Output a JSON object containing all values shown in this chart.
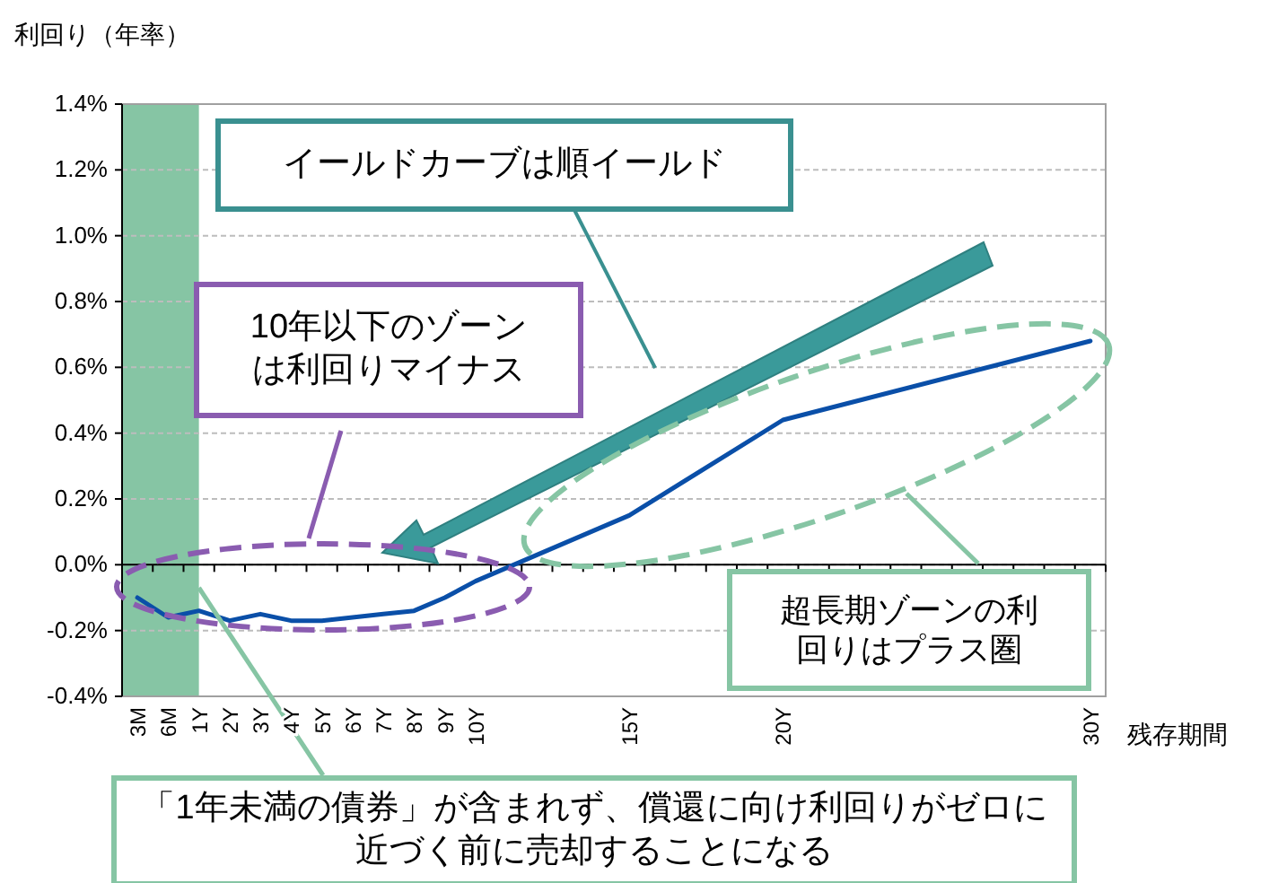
{
  "chart_data": {
    "type": "line",
    "ylabel": "利回り（年率）",
    "xlabel": "残存期間",
    "categories": [
      "3M",
      "6M",
      "1Y",
      "2Y",
      "3Y",
      "4Y",
      "5Y",
      "6Y",
      "7Y",
      "8Y",
      "9Y",
      "10Y",
      null,
      null,
      null,
      null,
      "15Y",
      null,
      null,
      null,
      null,
      "20Y",
      null,
      null,
      null,
      null,
      null,
      null,
      null,
      null,
      null,
      "30Y"
    ],
    "values": [
      -0.1,
      -0.16,
      -0.14,
      -0.17,
      -0.15,
      -0.17,
      -0.17,
      -0.16,
      -0.15,
      -0.14,
      -0.1,
      -0.05,
      null,
      null,
      null,
      null,
      0.15,
      null,
      null,
      null,
      null,
      0.44,
      null,
      null,
      null,
      null,
      null,
      null,
      null,
      null,
      null,
      0.68
    ],
    "color": "#0a4fa8",
    "ylim": [
      -0.4,
      1.4
    ],
    "yticks": [
      {
        "value": -0.4,
        "label": "-0.4%"
      },
      {
        "value": -0.2,
        "label": "-0.2%"
      },
      {
        "value": 0,
        "label": "0.0%"
      },
      {
        "value": 0.2,
        "label": "0.2%"
      },
      {
        "value": 0.4,
        "label": "0.4%"
      },
      {
        "value": 0.6,
        "label": "0.6%"
      },
      {
        "value": 0.8,
        "label": "0.8%"
      },
      {
        "value": 1.0,
        "label": "1.0%"
      },
      {
        "value": 1.2,
        "label": "1.2%"
      },
      {
        "value": 1.4,
        "label": "1.4%"
      }
    ],
    "grid": "y",
    "bands": [
      {
        "axis": "x",
        "from": "3M",
        "to": "1Y",
        "color": "#86c5a4"
      }
    ],
    "annotations": [
      "イールドカーブは順イールド",
      "10年以下のゾーンは利回りマイナス",
      "超長期ゾーンの利回りはプラス圏",
      {
        "text": "「1年未満の債券」が含まれず、償還に向け利回りがゼロに近づく前に売却することになる",
        "x": "1Y",
        "y": -0.07
      }
    ]
  }
}
